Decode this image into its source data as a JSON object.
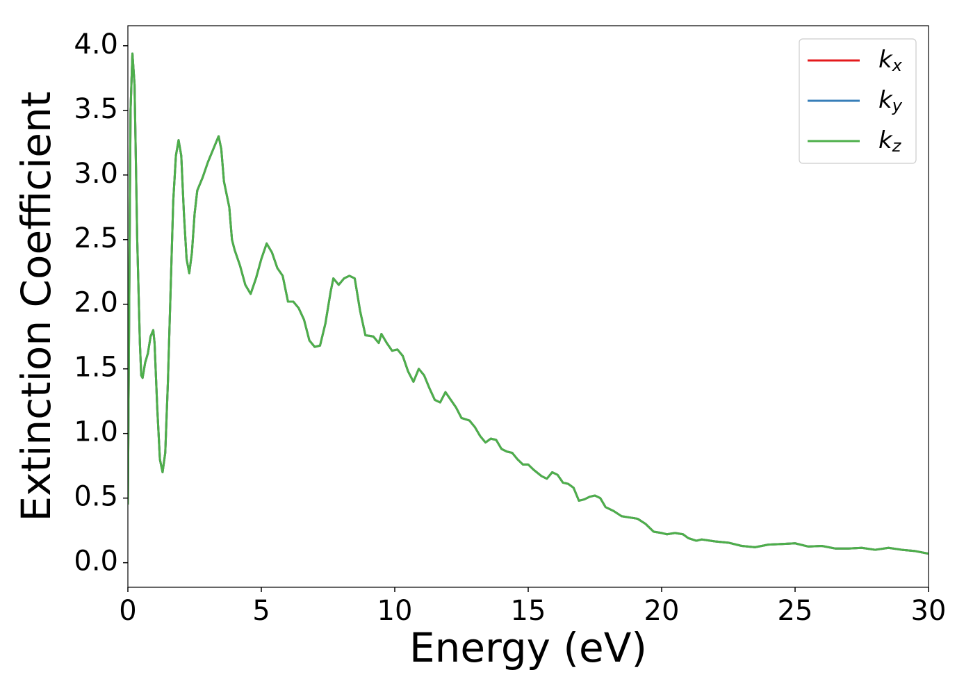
{
  "chart_data": {
    "type": "line",
    "xlabel": "Energy (eV)",
    "ylabel": "Extinction Coefficient",
    "x": [
      0,
      0.05,
      0.1,
      0.17,
      0.25,
      0.35,
      0.45,
      0.5,
      0.55,
      0.65,
      0.75,
      0.85,
      0.95,
      1.0,
      1.1,
      1.2,
      1.3,
      1.4,
      1.5,
      1.6,
      1.7,
      1.8,
      1.9,
      2.0,
      2.1,
      2.2,
      2.3,
      2.4,
      2.5,
      2.6,
      2.8,
      3.0,
      3.2,
      3.4,
      3.5,
      3.6,
      3.8,
      3.9,
      4.0,
      4.2,
      4.4,
      4.6,
      4.8,
      5.0,
      5.2,
      5.4,
      5.6,
      5.8,
      6.0,
      6.2,
      6.4,
      6.6,
      6.8,
      7.0,
      7.2,
      7.4,
      7.6,
      7.7,
      7.9,
      8.1,
      8.3,
      8.5,
      8.7,
      8.9,
      9.2,
      9.4,
      9.5,
      9.7,
      9.9,
      10.1,
      10.3,
      10.5,
      10.7,
      10.9,
      11.1,
      11.3,
      11.5,
      11.7,
      11.9,
      12.1,
      12.3,
      12.5,
      12.8,
      13.0,
      13.2,
      13.4,
      13.6,
      13.8,
      14.0,
      14.2,
      14.4,
      14.6,
      14.8,
      15.0,
      15.2,
      15.5,
      15.7,
      15.9,
      16.1,
      16.3,
      16.5,
      16.7,
      16.9,
      17.1,
      17.3,
      17.5,
      17.7,
      17.9,
      18.2,
      18.5,
      18.8,
      19.1,
      19.4,
      19.7,
      20.0,
      20.2,
      20.5,
      20.8,
      21.0,
      21.3,
      21.5,
      22.0,
      22.5,
      23.0,
      23.5,
      24.0,
      24.5,
      25.0,
      25.5,
      26.0,
      26.5,
      27.0,
      27.5,
      28.0,
      28.5,
      29.0,
      29.5,
      30.0
    ],
    "series": [
      {
        "name": "kx",
        "color": "#e41a1c",
        "values": [
          0.45,
          2.0,
          3.5,
          3.94,
          3.7,
          2.5,
          1.7,
          1.45,
          1.43,
          1.55,
          1.62,
          1.75,
          1.8,
          1.7,
          1.2,
          0.8,
          0.7,
          0.85,
          1.4,
          2.1,
          2.8,
          3.15,
          3.27,
          3.15,
          2.7,
          2.35,
          2.24,
          2.4,
          2.7,
          2.88,
          2.98,
          3.1,
          3.2,
          3.3,
          3.2,
          2.95,
          2.75,
          2.5,
          2.42,
          2.3,
          2.15,
          2.08,
          2.2,
          2.35,
          2.47,
          2.4,
          2.28,
          2.22,
          2.02,
          2.02,
          1.97,
          1.88,
          1.72,
          1.67,
          1.68,
          1.85,
          2.1,
          2.2,
          2.15,
          2.2,
          2.22,
          2.2,
          1.95,
          1.76,
          1.75,
          1.7,
          1.77,
          1.7,
          1.64,
          1.65,
          1.6,
          1.48,
          1.4,
          1.5,
          1.45,
          1.35,
          1.26,
          1.24,
          1.32,
          1.26,
          1.2,
          1.12,
          1.1,
          1.05,
          0.98,
          0.93,
          0.96,
          0.95,
          0.88,
          0.86,
          0.85,
          0.8,
          0.76,
          0.76,
          0.72,
          0.67,
          0.65,
          0.7,
          0.68,
          0.62,
          0.61,
          0.58,
          0.48,
          0.49,
          0.51,
          0.52,
          0.5,
          0.43,
          0.4,
          0.36,
          0.35,
          0.34,
          0.3,
          0.24,
          0.23,
          0.22,
          0.23,
          0.22,
          0.19,
          0.17,
          0.18,
          0.165,
          0.155,
          0.13,
          0.12,
          0.14,
          0.145,
          0.15,
          0.125,
          0.13,
          0.11,
          0.11,
          0.115,
          0.1,
          0.115,
          0.1,
          0.09,
          0.07
        ]
      },
      {
        "name": "ky",
        "color": "#377eb8",
        "values": [
          0.45,
          2.0,
          3.5,
          3.94,
          3.7,
          2.5,
          1.7,
          1.45,
          1.43,
          1.55,
          1.62,
          1.75,
          1.8,
          1.7,
          1.2,
          0.8,
          0.7,
          0.85,
          1.4,
          2.1,
          2.8,
          3.15,
          3.27,
          3.15,
          2.7,
          2.35,
          2.24,
          2.4,
          2.7,
          2.88,
          2.98,
          3.1,
          3.2,
          3.3,
          3.2,
          2.95,
          2.75,
          2.5,
          2.42,
          2.3,
          2.15,
          2.08,
          2.2,
          2.35,
          2.47,
          2.4,
          2.28,
          2.22,
          2.02,
          2.02,
          1.97,
          1.88,
          1.72,
          1.67,
          1.68,
          1.85,
          2.1,
          2.2,
          2.15,
          2.2,
          2.22,
          2.2,
          1.95,
          1.76,
          1.75,
          1.7,
          1.77,
          1.7,
          1.64,
          1.65,
          1.6,
          1.48,
          1.4,
          1.5,
          1.45,
          1.35,
          1.26,
          1.24,
          1.32,
          1.26,
          1.2,
          1.12,
          1.1,
          1.05,
          0.98,
          0.93,
          0.96,
          0.95,
          0.88,
          0.86,
          0.85,
          0.8,
          0.76,
          0.76,
          0.72,
          0.67,
          0.65,
          0.7,
          0.68,
          0.62,
          0.61,
          0.58,
          0.48,
          0.49,
          0.51,
          0.52,
          0.5,
          0.43,
          0.4,
          0.36,
          0.35,
          0.34,
          0.3,
          0.24,
          0.23,
          0.22,
          0.23,
          0.22,
          0.19,
          0.17,
          0.18,
          0.165,
          0.155,
          0.13,
          0.12,
          0.14,
          0.145,
          0.15,
          0.125,
          0.13,
          0.11,
          0.11,
          0.115,
          0.1,
          0.115,
          0.1,
          0.09,
          0.07
        ]
      },
      {
        "name": "kz",
        "color": "#4daf4a",
        "values": [
          0.45,
          2.0,
          3.5,
          3.94,
          3.7,
          2.5,
          1.7,
          1.45,
          1.43,
          1.55,
          1.62,
          1.75,
          1.8,
          1.7,
          1.2,
          0.8,
          0.7,
          0.85,
          1.4,
          2.1,
          2.8,
          3.15,
          3.27,
          3.15,
          2.7,
          2.35,
          2.24,
          2.4,
          2.7,
          2.88,
          2.98,
          3.1,
          3.2,
          3.3,
          3.2,
          2.95,
          2.75,
          2.5,
          2.42,
          2.3,
          2.15,
          2.08,
          2.2,
          2.35,
          2.47,
          2.4,
          2.28,
          2.22,
          2.02,
          2.02,
          1.97,
          1.88,
          1.72,
          1.67,
          1.68,
          1.85,
          2.1,
          2.2,
          2.15,
          2.2,
          2.22,
          2.2,
          1.95,
          1.76,
          1.75,
          1.7,
          1.77,
          1.7,
          1.64,
          1.65,
          1.6,
          1.48,
          1.4,
          1.5,
          1.45,
          1.35,
          1.26,
          1.24,
          1.32,
          1.26,
          1.2,
          1.12,
          1.1,
          1.05,
          0.98,
          0.93,
          0.96,
          0.95,
          0.88,
          0.86,
          0.85,
          0.8,
          0.76,
          0.76,
          0.72,
          0.67,
          0.65,
          0.7,
          0.68,
          0.62,
          0.61,
          0.58,
          0.48,
          0.49,
          0.51,
          0.52,
          0.5,
          0.43,
          0.4,
          0.36,
          0.35,
          0.34,
          0.3,
          0.24,
          0.23,
          0.22,
          0.23,
          0.22,
          0.19,
          0.17,
          0.18,
          0.165,
          0.155,
          0.13,
          0.12,
          0.14,
          0.145,
          0.15,
          0.125,
          0.13,
          0.11,
          0.11,
          0.115,
          0.1,
          0.115,
          0.1,
          0.09,
          0.07
        ]
      }
    ],
    "xlim": [
      0,
      30
    ],
    "xticks": [
      0,
      5,
      10,
      15,
      20,
      25,
      30
    ],
    "ylim": [
      -0.19,
      4.155
    ],
    "yticks": [
      {
        "value": 0,
        "label": "0.0"
      },
      0.5,
      {
        "value": 1,
        "label": "1.0"
      },
      1.5,
      {
        "value": 2,
        "label": "2.0"
      },
      2.5,
      {
        "value": 3,
        "label": "3.0"
      },
      3.5,
      {
        "value": 4,
        "label": "4.0"
      }
    ],
    "grid": false,
    "legend": "upper right"
  }
}
